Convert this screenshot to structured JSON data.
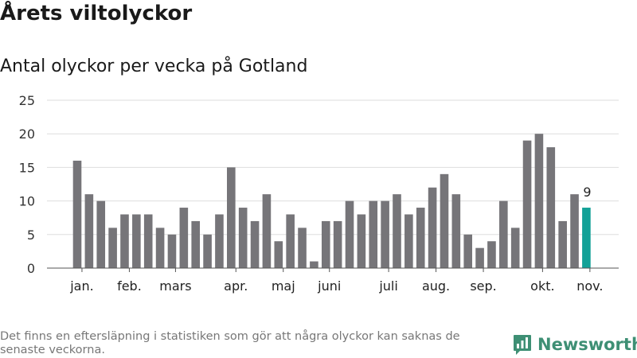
{
  "header": {
    "title": "Årets viltolyckor",
    "subtitle": "Antal olyckor per vecka på Gotland"
  },
  "footer": {
    "note": "Det finns en eftersläpning i statistiken som gör att några olyckor kan saknas de senaste veckorna.",
    "brand": "Newsworthy"
  },
  "colors": {
    "bar": "#767579",
    "highlight": "#13a197",
    "grid": "#dddddd",
    "brand": "#3e8f74"
  },
  "chart_data": {
    "type": "bar",
    "title": "Årets viltolyckor",
    "subtitle": "Antal olyckor per vecka på Gotland",
    "xlabel": "",
    "ylabel": "",
    "ylim": [
      0,
      25
    ],
    "yticks": [
      0,
      5,
      10,
      15,
      20,
      25
    ],
    "grid": true,
    "weeks": [
      1,
      2,
      3,
      4,
      5,
      6,
      7,
      8,
      9,
      10,
      11,
      12,
      13,
      14,
      15,
      16,
      17,
      18,
      19,
      20,
      21,
      22,
      23,
      24,
      25,
      26,
      27,
      28,
      29,
      30,
      31,
      32,
      33,
      34,
      35,
      36,
      37,
      38,
      39,
      40,
      41,
      42,
      43,
      44
    ],
    "values": [
      16,
      11,
      10,
      6,
      8,
      8,
      8,
      6,
      5,
      9,
      7,
      5,
      8,
      15,
      9,
      7,
      11,
      4,
      8,
      6,
      1,
      7,
      7,
      10,
      8,
      10,
      10,
      11,
      8,
      9,
      12,
      14,
      11,
      5,
      3,
      4,
      10,
      6,
      19,
      20,
      18,
      7,
      11,
      9
    ],
    "highlight_index": 43,
    "data_labels": [
      {
        "index": 43,
        "text": "9"
      }
    ],
    "month_labels": [
      {
        "label": "jan.",
        "index": 0.4
      },
      {
        "label": "feb.",
        "index": 4.4
      },
      {
        "label": "mars",
        "index": 8.3
      },
      {
        "label": "apr.",
        "index": 13.4
      },
      {
        "label": "maj",
        "index": 17.4
      },
      {
        "label": "juni",
        "index": 21.3
      },
      {
        "label": "juli",
        "index": 26.3
      },
      {
        "label": "aug.",
        "index": 30.3
      },
      {
        "label": "sep.",
        "index": 34.3
      },
      {
        "label": "okt.",
        "index": 39.3
      },
      {
        "label": "nov.",
        "index": 43.3
      }
    ]
  }
}
